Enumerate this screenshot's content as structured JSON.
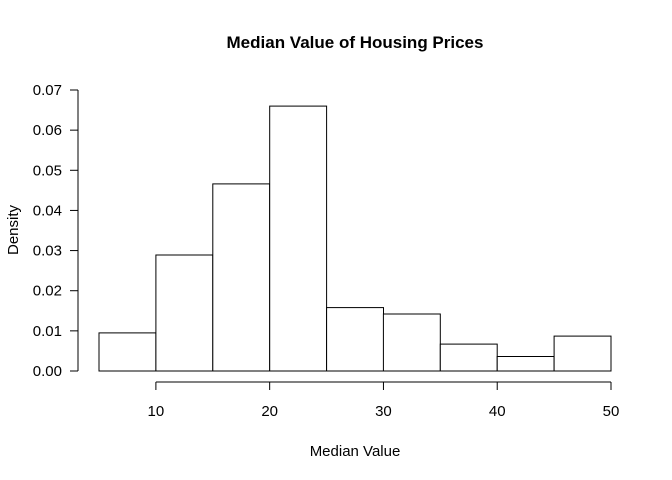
{
  "chart_data": {
    "type": "bar",
    "subtype": "histogram",
    "title": "Median Value of Housing Prices",
    "xlabel": "Median Value",
    "ylabel": "Density",
    "bins": [
      {
        "start": 5,
        "end": 10,
        "density": 0.0095
      },
      {
        "start": 10,
        "end": 15,
        "density": 0.0289
      },
      {
        "start": 15,
        "end": 20,
        "density": 0.0466
      },
      {
        "start": 20,
        "end": 25,
        "density": 0.066
      },
      {
        "start": 25,
        "end": 30,
        "density": 0.0158
      },
      {
        "start": 30,
        "end": 35,
        "density": 0.0142
      },
      {
        "start": 35,
        "end": 40,
        "density": 0.0067
      },
      {
        "start": 40,
        "end": 45,
        "density": 0.0036
      },
      {
        "start": 45,
        "end": 50,
        "density": 0.0087
      }
    ],
    "xlim": [
      5,
      50
    ],
    "ylim": [
      0,
      0.07
    ],
    "xticks": [
      10,
      20,
      30,
      40,
      50
    ],
    "yticks": [
      "0.00",
      "0.01",
      "0.02",
      "0.03",
      "0.04",
      "0.05",
      "0.06",
      "0.07"
    ],
    "grid": false,
    "legend": "none"
  }
}
